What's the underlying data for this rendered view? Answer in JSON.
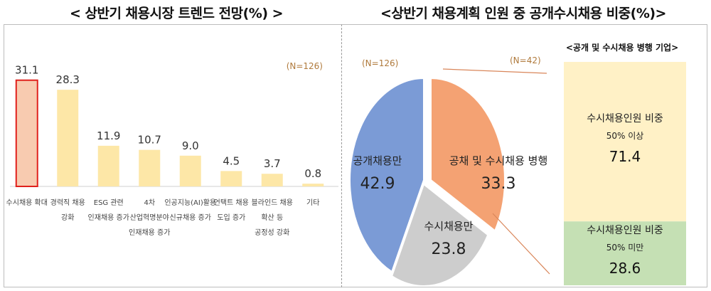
{
  "left_panel": {
    "title": "< 상반기 채용시장 트렌드 전망(%) >",
    "n_label": "(N=126)"
  },
  "right_panel": {
    "title": "<상반기 채용계획 인원 중 공개수시채용 비중(%)>",
    "pie_n_label": "(N=126)",
    "sub_n_label": "(N=42)"
  },
  "chart_data": [
    {
      "type": "bar",
      "title": "< 상반기 채용시장 트렌드 전망(%) >",
      "n_label": "(N=126)",
      "categories": [
        [
          "수시채용 확대"
        ],
        [
          "경력직 채용",
          "강화"
        ],
        [
          "ESG 관련",
          "인재채용 증가"
        ],
        [
          "4차",
          "산업혁명분야",
          "인재채용 증가"
        ],
        [
          "인공지능(AI)활용",
          "신규채용 증가"
        ],
        [
          "언택트 채용",
          "도입 증가"
        ],
        [
          "블라인드 채용",
          "확산 등",
          "공정성 강화"
        ],
        [
          "기타"
        ]
      ],
      "values": [
        31.1,
        28.3,
        11.9,
        10.7,
        9.0,
        4.5,
        3.7,
        0.8
      ],
      "value_labels": [
        "31.1",
        "28.3",
        "11.9",
        "10.7",
        "9.0",
        "4.5",
        "3.7",
        "0.8"
      ],
      "highlight_index": 0,
      "colors": {
        "bar": "#fde7a7",
        "highlight_fill": "#f8cbb0",
        "highlight_border": "#e0201c"
      },
      "ylim": [
        0,
        35
      ]
    },
    {
      "type": "pie",
      "title": "<상반기 채용계획 인원 중 공개수시채용 비중(%)>",
      "n_label": "(N=126)",
      "slices": [
        {
          "label": "공채 및 수시채용 병행",
          "value": 33.3,
          "value_label": "33.3",
          "color": "#f4a273"
        },
        {
          "label": "수시채용만",
          "value": 23.8,
          "value_label": "23.8",
          "color": "#cdcdcd"
        },
        {
          "label": "공개채용만",
          "value": 42.9,
          "value_label": "42.9",
          "color": "#7b9bd6"
        }
      ]
    },
    {
      "type": "bar",
      "stacked": true,
      "title": "<공개 및 수시채용 병행 기업>",
      "n_label": "(N=42)",
      "segments": [
        {
          "label_lines": [
            "수시채용인원 비중",
            "50% 이상"
          ],
          "value": 71.4,
          "value_label": "71.4",
          "color": "#fff1c6"
        },
        {
          "label_lines": [
            "수시채용인원 비중",
            "50% 미만"
          ],
          "value": 28.6,
          "value_label": "28.6",
          "color": "#c5e0b4"
        }
      ]
    }
  ]
}
